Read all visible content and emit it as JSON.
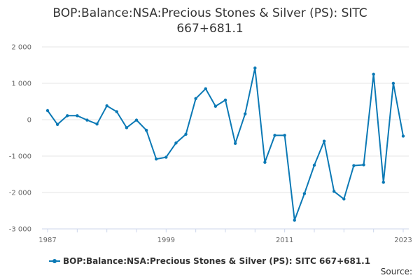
{
  "title": "BOP:Balance:NSA:Precious Stones & Silver (PS): SITC 667+681.1",
  "source_label": "Source:",
  "colors": {
    "series": "#0b79b5",
    "grid": "#e6e6e6",
    "axis": "#ccd6eb"
  },
  "chart_data": {
    "type": "line",
    "title": "BOP:Balance:NSA:Precious Stones & Silver (PS): SITC 667+681.1",
    "xlabel": "",
    "ylabel": "",
    "x": [
      1987,
      1988,
      1989,
      1990,
      1991,
      1992,
      1993,
      1994,
      1995,
      1996,
      1997,
      1998,
      1999,
      2000,
      2001,
      2002,
      2003,
      2004,
      2005,
      2006,
      2007,
      2008,
      2009,
      2010,
      2011,
      2012,
      2013,
      2014,
      2015,
      2016,
      2017,
      2018,
      2019,
      2020,
      2021,
      2022,
      2023
    ],
    "series": [
      {
        "name": "BOP:Balance:NSA:Precious Stones & Silver (PS): SITC 667+681.1",
        "values": [
          250,
          -130,
          110,
          110,
          -10,
          -120,
          380,
          220,
          -220,
          -10,
          -290,
          -1080,
          -1030,
          -640,
          -400,
          580,
          850,
          370,
          540,
          -650,
          160,
          1420,
          -1170,
          -430,
          -430,
          -2760,
          -2030,
          -1250,
          -590,
          -1970,
          -2180,
          -1260,
          -1240,
          1250,
          -1720,
          1000,
          -450
        ]
      }
    ],
    "xlim": [
      1987,
      2023
    ],
    "ylim": [
      -3000,
      2000
    ],
    "x_tick_labels": [
      "1987",
      "1999",
      "2011",
      "2023"
    ],
    "x_tick_values": [
      1987,
      1999,
      2011,
      2023
    ],
    "y_tick_values": [
      -3000,
      -2000,
      -1000,
      0,
      1000,
      2000
    ],
    "y_tick_labels": [
      "-3 000",
      "-2 000",
      "-1 000",
      "0",
      "1 000",
      "2 000"
    ],
    "grid": "horizontal",
    "legend": "bottom"
  }
}
